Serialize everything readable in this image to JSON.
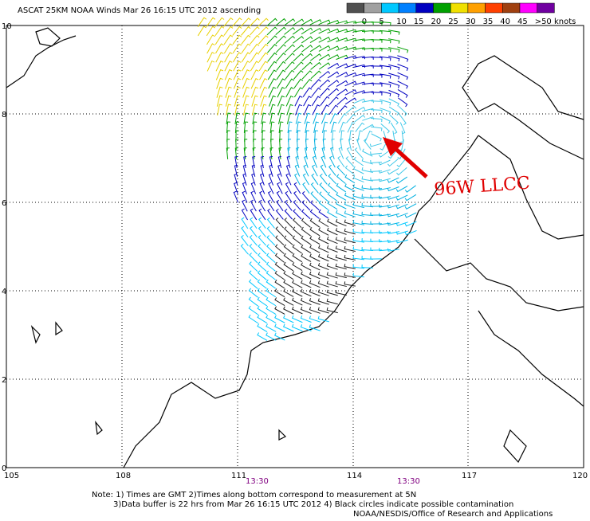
{
  "header": {
    "title": "ASCAT 25KM NOAA Winds Mar 26 16:15 UTC 2012 ascending"
  },
  "colorbar": {
    "labels": [
      "0",
      "5",
      "10",
      "15",
      "20",
      "25",
      "30",
      "35",
      "40",
      "45",
      ">50 knots"
    ]
  },
  "axes": {
    "x_ticks": [
      "105",
      "108",
      "111",
      "114",
      "117",
      "120"
    ],
    "y_ticks": [
      "0",
      "2",
      "4",
      "6",
      "8",
      "10"
    ]
  },
  "time_labels": [
    "13:30",
    "13:30"
  ],
  "annotation": "96W LLCC",
  "notes": [
    "Note: 1) Times are GMT 2)Times along bottom correspond to measurement at 5N",
    "3)Data buffer is 22 hrs from Mar 26 16:15 UTC 2012 4) Black circles indicate possible contamination",
    "NOAA/NESDIS/Office of Research and Applications"
  ]
}
